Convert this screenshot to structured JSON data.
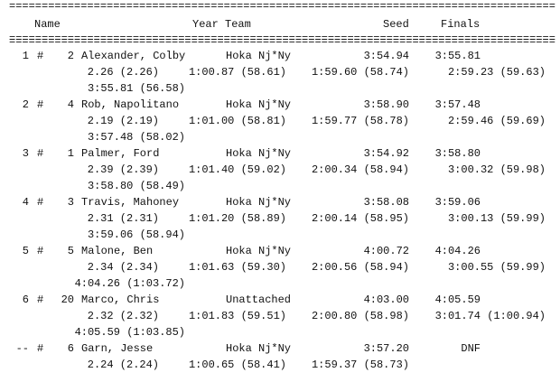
{
  "rule": "====================================================================================",
  "header": {
    "name": "Name",
    "year_team": "Year Team",
    "seed": "Seed",
    "finals": "Finals"
  },
  "entries": [
    {
      "place": "1",
      "mark": "#",
      "number": "2",
      "name": "Alexander, Colby",
      "team": "Hoka Nj*Ny",
      "seed": "3:54.94",
      "finals": "3:55.81",
      "splits": [
        "2.26 (2.26)",
        "1:00.87 (58.61)",
        "1:59.60 (58.74)",
        "2:59.23 (59.63)",
        "3:55.81 (56.58)"
      ]
    },
    {
      "place": "2",
      "mark": "#",
      "number": "4",
      "name": "Rob, Napolitano",
      "team": "Hoka Nj*Ny",
      "seed": "3:58.90",
      "finals": "3:57.48",
      "splits": [
        "2.19 (2.19)",
        "1:01.00 (58.81)",
        "1:59.77 (58.78)",
        "2:59.46 (59.69)",
        "3:57.48 (58.02)"
      ]
    },
    {
      "place": "3",
      "mark": "#",
      "number": "1",
      "name": "Palmer, Ford",
      "team": "Hoka Nj*Ny",
      "seed": "3:54.92",
      "finals": "3:58.80",
      "splits": [
        "2.39 (2.39)",
        "1:01.40 (59.02)",
        "2:00.34 (58.94)",
        "3:00.32 (59.98)",
        "3:58.80 (58.49)"
      ]
    },
    {
      "place": "4",
      "mark": "#",
      "number": "3",
      "name": "Travis, Mahoney",
      "team": "Hoka Nj*Ny",
      "seed": "3:58.08",
      "finals": "3:59.06",
      "splits": [
        "2.31 (2.31)",
        "1:01.20 (58.89)",
        "2:00.14 (58.95)",
        "3:00.13 (59.99)",
        "3:59.06 (58.94)"
      ]
    },
    {
      "place": "5",
      "mark": "#",
      "number": "5",
      "name": "Malone, Ben",
      "team": "Hoka Nj*Ny",
      "seed": "4:00.72",
      "finals": "4:04.26",
      "splits": [
        "2.34 (2.34)",
        "1:01.63 (59.30)",
        "2:00.56 (58.94)",
        "3:00.55 (59.99)",
        "4:04.26 (1:03.72)"
      ]
    },
    {
      "place": "6",
      "mark": "#",
      "number": "20",
      "name": "Marco, Chris",
      "team": "Unattached",
      "seed": "4:03.00",
      "finals": "4:05.59",
      "splits": [
        "2.32 (2.32)",
        "1:01.83 (59.51)",
        "2:00.80 (58.98)",
        "3:01.74 (1:00.94)",
        "4:05.59 (1:03.85)"
      ]
    },
    {
      "place": "--",
      "mark": "#",
      "number": "6",
      "name": "Garn, Jesse",
      "team": "Hoka Nj*Ny",
      "seed": "3:57.20",
      "finals": "DNF",
      "splits": [
        "2.24 (2.24)",
        "1:00.65 (58.41)",
        "1:59.37 (58.73)"
      ]
    }
  ]
}
